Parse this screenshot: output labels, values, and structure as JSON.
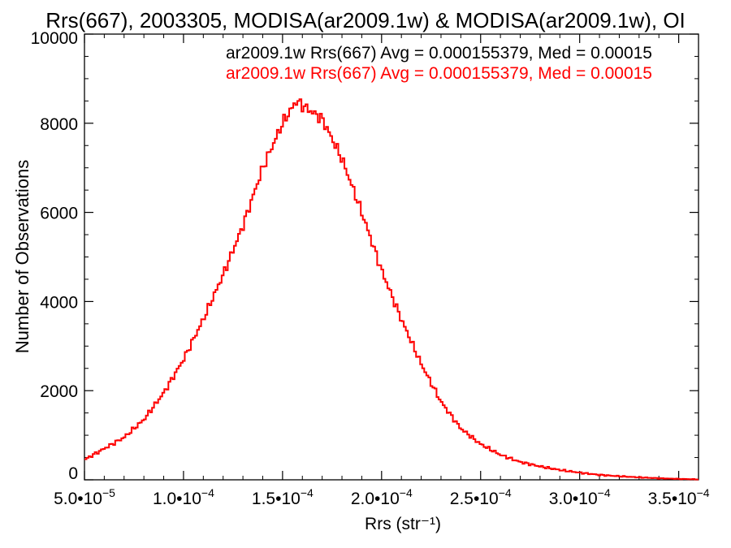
{
  "chart_data": {
    "type": "histogram",
    "title": "Rrs(667), 2003305, MODISA(ar2009.1w) & MODISA(ar2009.1w), OI",
    "xlabel": "Rrs (str⁻¹)",
    "ylabel": "Number of Observations",
    "xlim": [
      5e-05,
      0.00036
    ],
    "ylim": [
      0,
      10000
    ],
    "y_ticks": [
      0,
      2000,
      4000,
      6000,
      8000,
      10000
    ],
    "y_tick_labels": [
      "0",
      "2000",
      "4000",
      "6000",
      "8000",
      "10000"
    ],
    "x_ticks": [
      5e-05,
      0.0001,
      0.00015,
      0.0002,
      0.00025,
      0.0003,
      0.00035
    ],
    "x_tick_labels": [
      {
        "mant": "5.0•10",
        "exp": "−5"
      },
      {
        "mant": "1.0•10",
        "exp": "−4"
      },
      {
        "mant": "1.5•10",
        "exp": "−4"
      },
      {
        "mant": "2.0•10",
        "exp": "−4"
      },
      {
        "mant": "2.5•10",
        "exp": "−4"
      },
      {
        "mant": "3.0•10",
        "exp": "−4"
      },
      {
        "mant": "3.5•10",
        "exp": "−4"
      }
    ],
    "legend_placement": "top-right, inside plot, clipped at right edge",
    "series": [
      {
        "name": "ar2009.1w Rrs(667) Avg = 0.000155379, Med = 0.00015",
        "color": "#000000",
        "curve": [
          [
            5e-05,
            450
          ],
          [
            6e-05,
            700
          ],
          [
            7e-05,
            950
          ],
          [
            8e-05,
            1350
          ],
          [
            9e-05,
            1950
          ],
          [
            0.0001,
            2700
          ],
          [
            0.00011,
            3600
          ],
          [
            0.00012,
            4600
          ],
          [
            0.00013,
            5700
          ],
          [
            0.00014,
            7000
          ],
          [
            0.00015,
            8000
          ],
          [
            0.000157,
            8500
          ],
          [
            0.00016,
            8400
          ],
          [
            0.00017,
            8100
          ],
          [
            0.00018,
            7200
          ],
          [
            0.00019,
            6000
          ],
          [
            0.0002,
            4700
          ],
          [
            0.00021,
            3600
          ],
          [
            0.00022,
            2600
          ],
          [
            0.00023,
            1750
          ],
          [
            0.00024,
            1150
          ],
          [
            0.00025,
            800
          ],
          [
            0.00026,
            560
          ],
          [
            0.00027,
            400
          ],
          [
            0.00028,
            300
          ],
          [
            0.00029,
            220
          ],
          [
            0.0003,
            160
          ],
          [
            0.00031,
            110
          ],
          [
            0.00032,
            80
          ],
          [
            0.00033,
            55
          ],
          [
            0.00034,
            35
          ],
          [
            0.00035,
            20
          ],
          [
            0.00036,
            10
          ]
        ]
      },
      {
        "name": "ar2009.1w Rrs(667) Avg = 0.000155379, Med = 0.00015",
        "color": "#ff0000",
        "same_as": 0
      }
    ]
  }
}
